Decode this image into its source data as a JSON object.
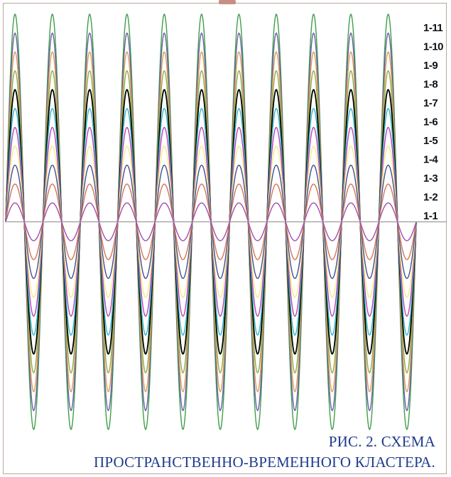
{
  "caption": {
    "line1": "РИС. 2.  СХЕМА",
    "line2": "ПРОСТРАНСТВЕННО-ВРЕМЕННОГО КЛАСТЕРА."
  },
  "chart_data": {
    "type": "line",
    "title": "",
    "xlabel": "",
    "ylabel": "",
    "grid": false,
    "legend": "right",
    "cycles": 11,
    "waveform": "sine-like, starting with a positive half-cycle; all series in phase",
    "series": [
      {
        "name": "1-1",
        "amplitude": 1,
        "color": "#9b4fb0"
      },
      {
        "name": "1-2",
        "amplitude": 2,
        "color": "#d9734e"
      },
      {
        "name": "1-3",
        "amplitude": 3,
        "color": "#3f4f9a"
      },
      {
        "name": "1-4",
        "amplitude": 4,
        "color": "#f4ec7c"
      },
      {
        "name": "1-5",
        "amplitude": 5,
        "color": "#c33fb4"
      },
      {
        "name": "1-6",
        "amplitude": 6,
        "color": "#2bb6c8"
      },
      {
        "name": "1-7",
        "amplitude": 7,
        "color": "#000000"
      },
      {
        "name": "1-8",
        "amplitude": 8,
        "color": "#87b04a"
      },
      {
        "name": "1-9",
        "amplitude": 9,
        "color": "#e09a52"
      },
      {
        "name": "1-10",
        "amplitude": 10,
        "color": "#6b5fa8"
      },
      {
        "name": "1-11",
        "amplitude": 11,
        "color": "#3f9e4c"
      }
    ],
    "baseline_color": "#9a9a9a",
    "frame_color": "#b7a7a0"
  }
}
